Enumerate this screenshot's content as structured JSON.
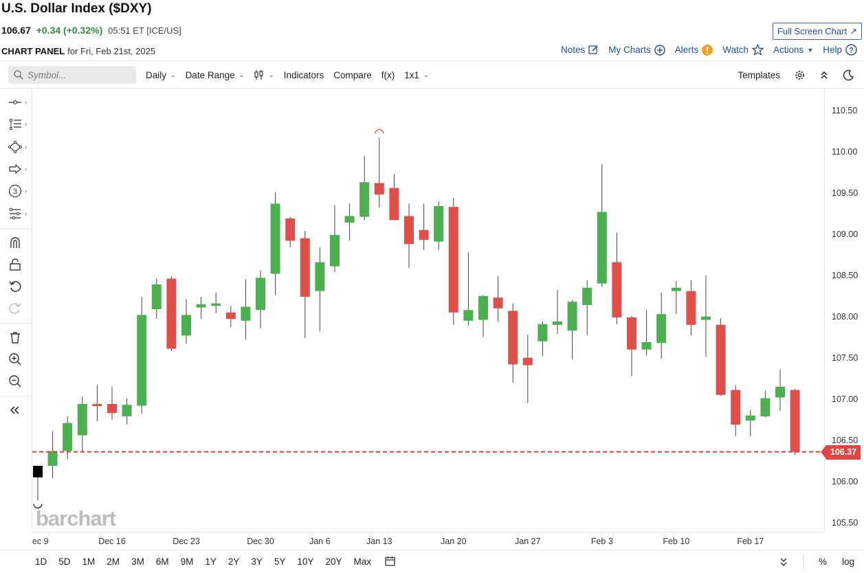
{
  "header": {
    "title": "U.S. Dollar Index ($DXY)",
    "price": "106.67",
    "change": "+0.34 (+0.32%)",
    "time": "05:51 ET [ICE/US]",
    "fullscreen_label": "Full Screen Chart"
  },
  "panel": {
    "label": "CHART PANEL",
    "date": "for Fri, Feb 21st, 2025",
    "links": [
      "Notes",
      "My Charts",
      "Alerts",
      "Watch",
      "Actions",
      "Help"
    ]
  },
  "toolbar": {
    "symbol_placeholder": "Symbol...",
    "interval": "Daily",
    "date_range": "Date Range",
    "indicators": "Indicators",
    "compare": "Compare",
    "fx": "f(x)",
    "layout": "1x1",
    "templates": "Templates"
  },
  "watermark": "barchart",
  "last_price_tag": "106.37",
  "range_buttons": [
    "1D",
    "5D",
    "1M",
    "2M",
    "3M",
    "6M",
    "9M",
    "1Y",
    "2Y",
    "3Y",
    "5Y",
    "10Y",
    "20Y",
    "Max"
  ],
  "bottom_right": [
    "%",
    "log"
  ],
  "colors": {
    "up": "#4caf50",
    "down": "#e0504a",
    "last_line": "#e03a3a",
    "link": "#1f4e9c"
  },
  "chart_data": {
    "type": "candlestick",
    "title": "U.S. Dollar Index ($DXY)",
    "ylim": [
      105.4,
      110.8
    ],
    "yticks": [
      "110.50",
      "110.00",
      "109.50",
      "109.00",
      "108.50",
      "108.00",
      "107.50",
      "107.00",
      "106.50",
      "106.00",
      "105.50"
    ],
    "xticks": [
      "ec 9",
      "Dec 16",
      "Dec 23",
      "Dec 30",
      "Jan 6",
      "Jan 13",
      "Jan 20",
      "Jan 27",
      "Feb 3",
      "Feb 10",
      "Feb 17"
    ],
    "last_price": 106.37,
    "candles": [
      {
        "o": 106.06,
        "h": 106.2,
        "l": 105.78,
        "c": 106.2
      },
      {
        "o": 106.2,
        "h": 106.62,
        "l": 106.05,
        "c": 106.38
      },
      {
        "o": 106.38,
        "h": 106.8,
        "l": 106.28,
        "c": 106.72
      },
      {
        "o": 106.57,
        "h": 107.04,
        "l": 106.36,
        "c": 106.95
      },
      {
        "o": 106.95,
        "h": 107.18,
        "l": 106.74,
        "c": 106.93
      },
      {
        "o": 106.95,
        "h": 107.16,
        "l": 106.76,
        "c": 106.84
      },
      {
        "o": 106.8,
        "h": 107.02,
        "l": 106.7,
        "c": 106.94
      },
      {
        "o": 106.93,
        "h": 108.25,
        "l": 106.83,
        "c": 108.03
      },
      {
        "o": 108.1,
        "h": 108.47,
        "l": 107.98,
        "c": 108.4
      },
      {
        "o": 108.47,
        "h": 108.5,
        "l": 107.59,
        "c": 107.62
      },
      {
        "o": 107.78,
        "h": 108.22,
        "l": 107.68,
        "c": 108.03
      },
      {
        "o": 108.12,
        "h": 108.25,
        "l": 107.98,
        "c": 108.16
      },
      {
        "o": 108.14,
        "h": 108.3,
        "l": 108.05,
        "c": 108.17
      },
      {
        "o": 108.06,
        "h": 108.14,
        "l": 107.88,
        "c": 107.98
      },
      {
        "o": 107.96,
        "h": 108.46,
        "l": 107.73,
        "c": 108.13
      },
      {
        "o": 108.09,
        "h": 108.57,
        "l": 107.87,
        "c": 108.48
      },
      {
        "o": 108.53,
        "h": 109.52,
        "l": 108.27,
        "c": 109.38
      },
      {
        "o": 109.2,
        "h": 109.22,
        "l": 108.85,
        "c": 108.93
      },
      {
        "o": 108.96,
        "h": 109.05,
        "l": 107.75,
        "c": 108.25
      },
      {
        "o": 108.32,
        "h": 108.85,
        "l": 107.83,
        "c": 108.67
      },
      {
        "o": 108.62,
        "h": 109.36,
        "l": 108.55,
        "c": 109.0
      },
      {
        "o": 109.15,
        "h": 109.38,
        "l": 108.93,
        "c": 109.23
      },
      {
        "o": 109.22,
        "h": 109.96,
        "l": 109.18,
        "c": 109.64
      },
      {
        "o": 109.63,
        "h": 110.18,
        "l": 109.33,
        "c": 109.49
      },
      {
        "o": 109.57,
        "h": 109.74,
        "l": 109.18,
        "c": 109.18
      },
      {
        "o": 109.23,
        "h": 109.38,
        "l": 108.6,
        "c": 108.89
      },
      {
        "o": 109.06,
        "h": 109.38,
        "l": 108.82,
        "c": 108.94
      },
      {
        "o": 108.92,
        "h": 109.41,
        "l": 108.82,
        "c": 109.35
      },
      {
        "o": 109.34,
        "h": 109.45,
        "l": 107.91,
        "c": 108.06
      },
      {
        "o": 107.96,
        "h": 108.79,
        "l": 107.9,
        "c": 108.09
      },
      {
        "o": 107.97,
        "h": 108.27,
        "l": 107.76,
        "c": 108.26
      },
      {
        "o": 108.24,
        "h": 108.5,
        "l": 107.95,
        "c": 108.11
      },
      {
        "o": 108.08,
        "h": 108.17,
        "l": 107.21,
        "c": 107.43
      },
      {
        "o": 107.51,
        "h": 107.79,
        "l": 106.96,
        "c": 107.42
      },
      {
        "o": 107.71,
        "h": 107.95,
        "l": 107.53,
        "c": 107.92
      },
      {
        "o": 107.91,
        "h": 108.33,
        "l": 107.8,
        "c": 107.95
      },
      {
        "o": 107.84,
        "h": 108.21,
        "l": 107.49,
        "c": 108.19
      },
      {
        "o": 108.15,
        "h": 108.45,
        "l": 107.78,
        "c": 108.36
      },
      {
        "o": 108.41,
        "h": 109.86,
        "l": 108.37,
        "c": 109.28
      },
      {
        "o": 108.67,
        "h": 109.03,
        "l": 107.92,
        "c": 108.0
      },
      {
        "o": 108.0,
        "h": 108.02,
        "l": 107.29,
        "c": 107.61
      },
      {
        "o": 107.61,
        "h": 108.09,
        "l": 107.54,
        "c": 107.7
      },
      {
        "o": 107.69,
        "h": 108.3,
        "l": 107.5,
        "c": 108.04
      },
      {
        "o": 108.32,
        "h": 108.44,
        "l": 108.04,
        "c": 108.36
      },
      {
        "o": 108.32,
        "h": 108.45,
        "l": 107.78,
        "c": 107.91
      },
      {
        "o": 107.97,
        "h": 108.51,
        "l": 107.52,
        "c": 108.01
      },
      {
        "o": 107.91,
        "h": 107.99,
        "l": 107.05,
        "c": 107.06
      },
      {
        "o": 107.12,
        "h": 107.18,
        "l": 106.56,
        "c": 106.7
      },
      {
        "o": 106.75,
        "h": 106.88,
        "l": 106.56,
        "c": 106.81
      },
      {
        "o": 106.8,
        "h": 107.11,
        "l": 106.79,
        "c": 107.02
      },
      {
        "o": 107.03,
        "h": 107.37,
        "l": 106.87,
        "c": 107.16
      },
      {
        "o": 107.12,
        "h": 107.13,
        "l": 106.33,
        "c": 106.37
      }
    ]
  }
}
